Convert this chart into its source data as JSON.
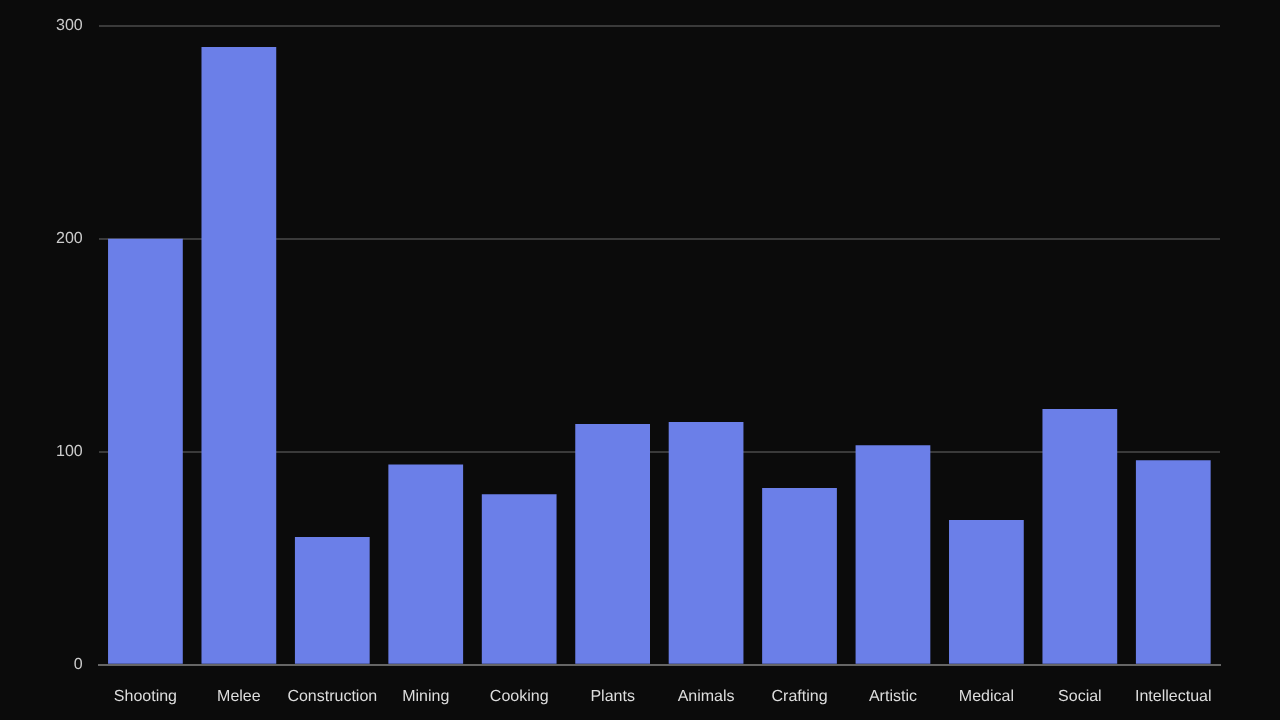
{
  "chart_data": {
    "type": "bar",
    "categories": [
      "Shooting",
      "Melee",
      "Construction",
      "Mining",
      "Cooking",
      "Plants",
      "Animals",
      "Crafting",
      "Artistic",
      "Medical",
      "Social",
      "Intellectual"
    ],
    "values": [
      200,
      290,
      60,
      94,
      80,
      113,
      114,
      83,
      103,
      68,
      120,
      96
    ],
    "color": "#6b7fe8",
    "ylim": [
      0,
      300
    ],
    "yticks": [
      0,
      100,
      200,
      300
    ],
    "grid": "y"
  }
}
